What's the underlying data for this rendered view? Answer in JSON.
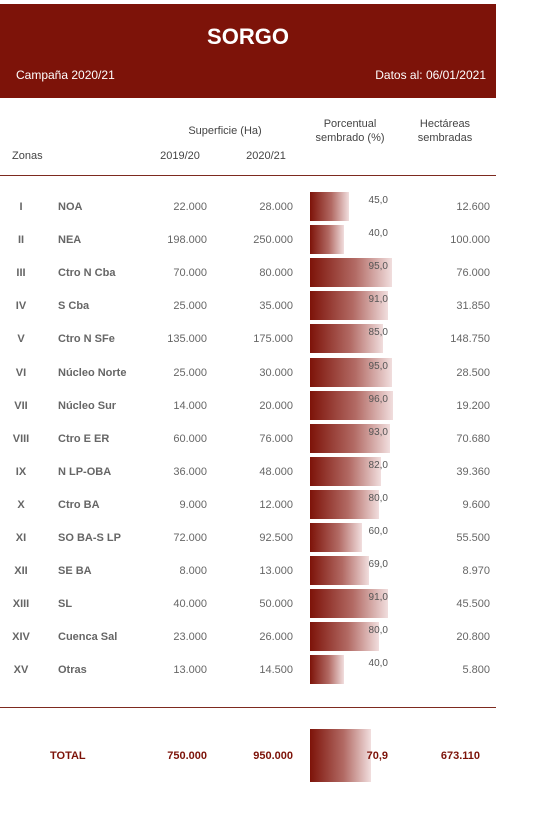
{
  "header": {
    "title": "SORGO",
    "campaign": "Campaña 2020/21",
    "date": "Datos al: 06/01/2021"
  },
  "columns": {
    "zonas": "Zonas",
    "superficie": "Superficie (Ha)",
    "y1": "2019/20",
    "y2": "2020/21",
    "porcentual_line1": "Porcentual",
    "porcentual_line2": "sembrado (%)",
    "hectareas_line1": "Hectáreas",
    "hectareas_line2": "sembradas"
  },
  "rows": [
    {
      "id": "I",
      "zone": "NOA",
      "y1": "22.000",
      "y2": "28.000",
      "pct": "45,0",
      "pct_value": 45.0,
      "ha": "12.600"
    },
    {
      "id": "II",
      "zone": "NEA",
      "y1": "198.000",
      "y2": "250.000",
      "pct": "40,0",
      "pct_value": 40.0,
      "ha": "100.000"
    },
    {
      "id": "III",
      "zone": "Ctro N Cba",
      "y1": "70.000",
      "y2": "80.000",
      "pct": "95,0",
      "pct_value": 95.0,
      "ha": "76.000"
    },
    {
      "id": "IV",
      "zone": "S Cba",
      "y1": "25.000",
      "y2": "35.000",
      "pct": "91,0",
      "pct_value": 91.0,
      "ha": "31.850"
    },
    {
      "id": "V",
      "zone": "Ctro N SFe",
      "y1": "135.000",
      "y2": "175.000",
      "pct": "85,0",
      "pct_value": 85.0,
      "ha": "148.750"
    },
    {
      "id": "VI",
      "zone": "Núcleo Norte",
      "y1": "25.000",
      "y2": "30.000",
      "pct": "95,0",
      "pct_value": 95.0,
      "ha": "28.500"
    },
    {
      "id": "VII",
      "zone": "Núcleo Sur",
      "y1": "14.000",
      "y2": "20.000",
      "pct": "96,0",
      "pct_value": 96.0,
      "ha": "19.200"
    },
    {
      "id": "VIII",
      "zone": "Ctro E ER",
      "y1": "60.000",
      "y2": "76.000",
      "pct": "93,0",
      "pct_value": 93.0,
      "ha": "70.680"
    },
    {
      "id": "IX",
      "zone": "N LP-OBA",
      "y1": "36.000",
      "y2": "48.000",
      "pct": "82,0",
      "pct_value": 82.0,
      "ha": "39.360"
    },
    {
      "id": "X",
      "zone": "Ctro BA",
      "y1": "9.000",
      "y2": "12.000",
      "pct": "80,0",
      "pct_value": 80.0,
      "ha": "9.600"
    },
    {
      "id": "XI",
      "zone": "SO BA-S LP",
      "y1": "72.000",
      "y2": "92.500",
      "pct": "60,0",
      "pct_value": 60.0,
      "ha": "55.500"
    },
    {
      "id": "XII",
      "zone": "SE BA",
      "y1": "8.000",
      "y2": "13.000",
      "pct": "69,0",
      "pct_value": 69.0,
      "ha": "8.970"
    },
    {
      "id": "XIII",
      "zone": "SL",
      "y1": "40.000",
      "y2": "50.000",
      "pct": "91,0",
      "pct_value": 91.0,
      "ha": "45.500"
    },
    {
      "id": "XIV",
      "zone": "Cuenca Sal",
      "y1": "23.000",
      "y2": "26.000",
      "pct": "80,0",
      "pct_value": 80.0,
      "ha": "20.800"
    },
    {
      "id": "XV",
      "zone": "Otras",
      "y1": "13.000",
      "y2": "14.500",
      "pct": "40,0",
      "pct_value": 40.0,
      "ha": "5.800"
    }
  ],
  "total": {
    "label": "TOTAL",
    "y1": "750.000",
    "y2": "950.000",
    "pct": "70,9",
    "pct_value": 70.9,
    "ha": "673.110"
  },
  "colors": {
    "brand": "#7d1309"
  }
}
